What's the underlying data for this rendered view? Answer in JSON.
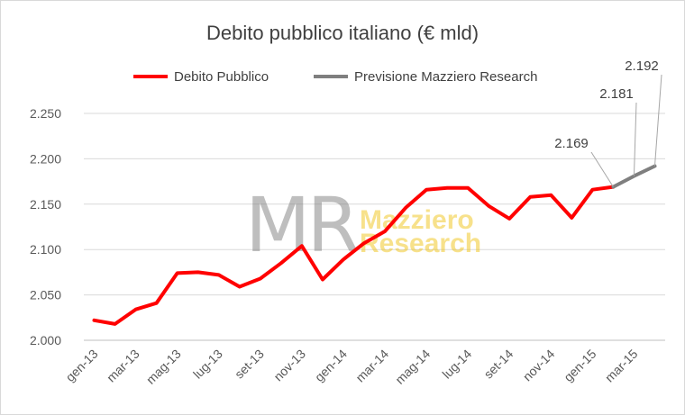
{
  "chart_data": {
    "type": "line",
    "title": "Debito pubblico italiano (€ mld)",
    "xlabel": "",
    "ylabel": "",
    "ylim": [
      2000,
      2250
    ],
    "yticks": [
      "2.000",
      "2.050",
      "2.100",
      "2.150",
      "2.200",
      "2.250"
    ],
    "x": [
      "gen-13",
      "feb-13",
      "mar-13",
      "apr-13",
      "mag-13",
      "giu-13",
      "lug-13",
      "ago-13",
      "set-13",
      "ott-13",
      "nov-13",
      "dic-13",
      "gen-14",
      "feb-14",
      "mar-14",
      "apr-14",
      "mag-14",
      "giu-14",
      "lug-14",
      "ago-14",
      "set-14",
      "ott-14",
      "nov-14",
      "dic-14",
      "gen-15",
      "feb-15",
      "mar-15",
      "apr-15"
    ],
    "xtick_labels": [
      "gen-13",
      "mar-13",
      "mag-13",
      "lug-13",
      "set-13",
      "nov-13",
      "gen-14",
      "mar-14",
      "mag-14",
      "lug-14",
      "set-14",
      "nov-14",
      "gen-15",
      "mar-15"
    ],
    "series": [
      {
        "name": "Debito Pubblico",
        "color": "#ff0000",
        "x": [
          "gen-13",
          "feb-13",
          "mar-13",
          "apr-13",
          "mag-13",
          "giu-13",
          "lug-13",
          "ago-13",
          "set-13",
          "ott-13",
          "nov-13",
          "dic-13",
          "gen-14",
          "feb-14",
          "mar-14",
          "apr-14",
          "mag-14",
          "giu-14",
          "lug-14",
          "ago-14",
          "set-14",
          "ott-14",
          "nov-14",
          "dic-14",
          "gen-15",
          "feb-15"
        ],
        "values": [
          2022,
          2018,
          2034,
          2041,
          2074,
          2075,
          2072,
          2059,
          2068,
          2085,
          2104,
          2067,
          2089,
          2107,
          2120,
          2146,
          2166,
          2168,
          2168,
          2148,
          2134,
          2158,
          2160,
          2135,
          2166,
          2169
        ]
      },
      {
        "name": "Previsione Mazziero Research",
        "color": "#7f7f7f",
        "x": [
          "feb-15",
          "mar-15",
          "apr-15"
        ],
        "values": [
          2169,
          2181,
          2192
        ]
      }
    ],
    "annotations": [
      {
        "x": "feb-15",
        "value": 2169,
        "text": "2.169"
      },
      {
        "x": "mar-15",
        "value": 2181,
        "text": "2.181"
      },
      {
        "x": "apr-15",
        "value": 2192,
        "text": "2.192"
      }
    ],
    "legend_position": "top",
    "grid": true,
    "watermark": {
      "mark": "MR",
      "line1": "Mazziero",
      "line2": "Research"
    }
  }
}
